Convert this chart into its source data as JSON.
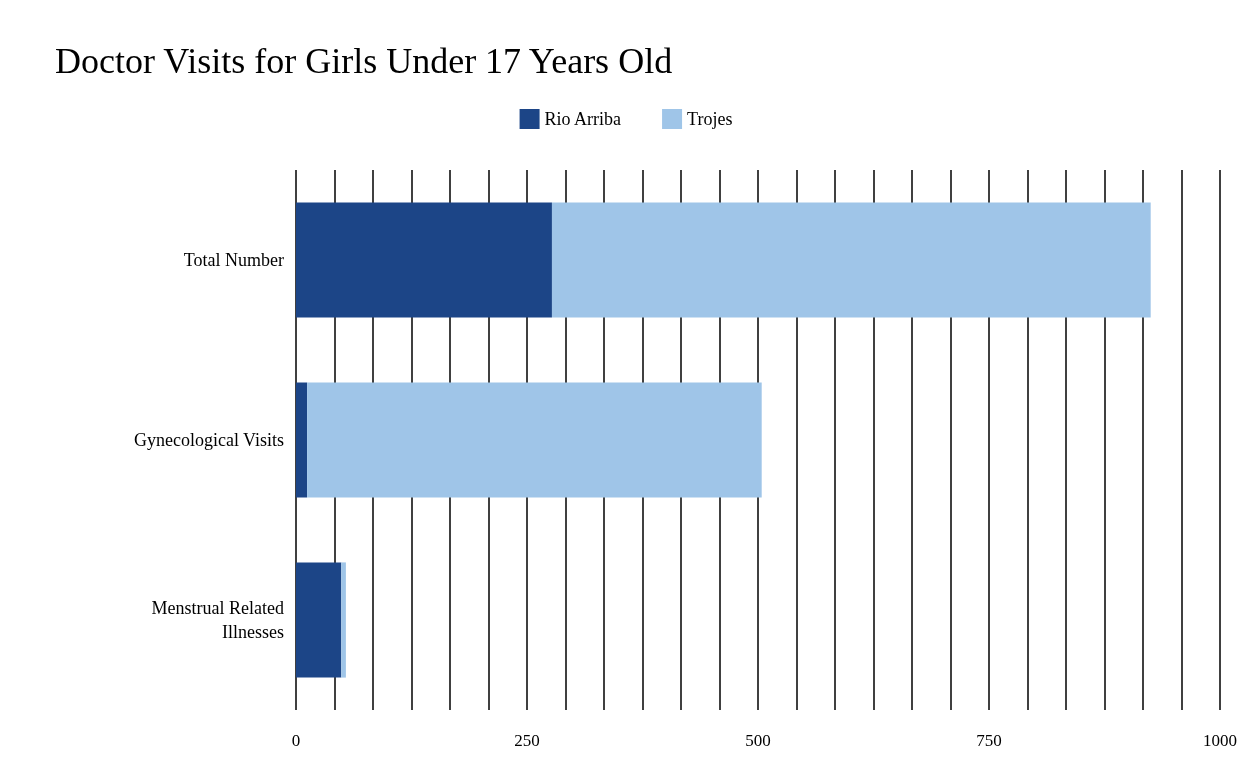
{
  "chart_data": {
    "type": "bar",
    "orientation": "horizontal",
    "stacked": true,
    "title": "Doctor Visits for Girls Under 17 Years Old",
    "categories": [
      "Total Number",
      "Gynecological Visits",
      "Menstrual Related\nIllnesses"
    ],
    "series": [
      {
        "name": "Rio Arriba",
        "color": "#1c4587",
        "values": [
          277,
          12,
          49
        ]
      },
      {
        "name": "Trojes",
        "color": "#9fc5e8",
        "values": [
          648,
          492,
          5
        ]
      }
    ],
    "xlim": [
      0,
      1000
    ],
    "xticks": [
      0,
      250,
      500,
      750,
      1000
    ],
    "grid": "x",
    "legend": "top"
  }
}
